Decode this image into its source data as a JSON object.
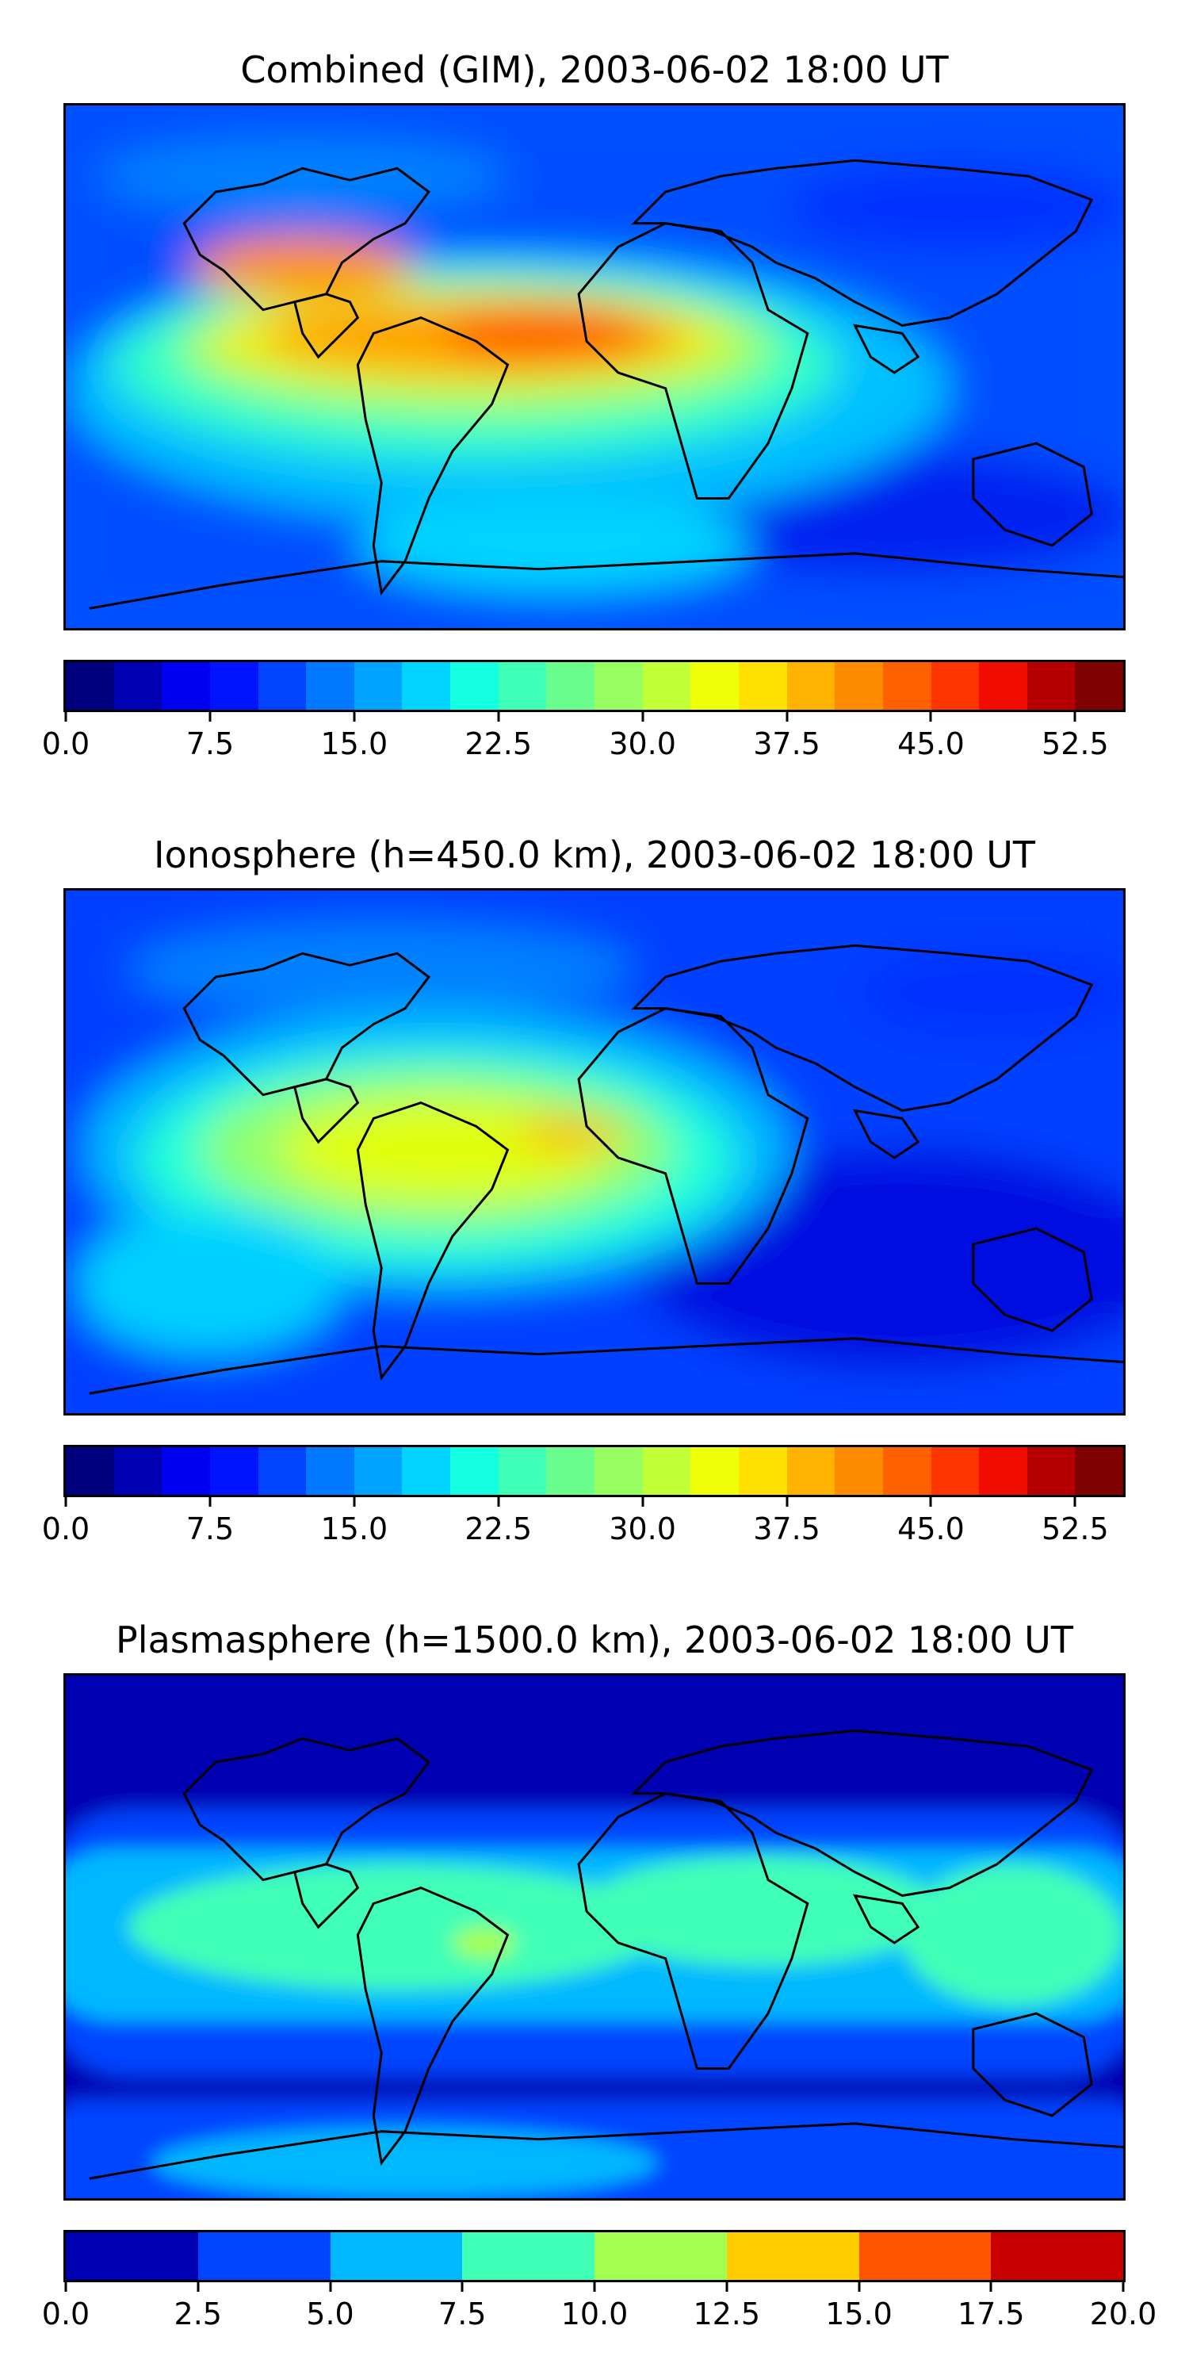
{
  "panels": [
    {
      "title": "Combined (GIM), 2003-06-02 18:00 UT",
      "colorbar": {
        "vmin": 0.0,
        "vmax": 55.0,
        "ticks": [
          "0.0",
          "7.5",
          "15.0",
          "22.5",
          "30.0",
          "37.5",
          "45.0",
          "52.5"
        ],
        "tick_values": [
          0.0,
          7.5,
          15.0,
          22.5,
          30.0,
          37.5,
          45.0,
          52.5
        ],
        "colors": [
          "#00007f",
          "#0000b2",
          "#0000f0",
          "#0014ff",
          "#0044ff",
          "#0078ff",
          "#00a4ff",
          "#00d4ff",
          "#14ffe2",
          "#3fffb7",
          "#6aff8c",
          "#97ff60",
          "#c1ff36",
          "#eeff08",
          "#ffe000",
          "#ffb300",
          "#ff8b00",
          "#ff6000",
          "#ff3500",
          "#f00d00",
          "#b60000",
          "#7f0000"
        ]
      }
    },
    {
      "title": "Ionosphere  (h=450.0 km), 2003-06-02 18:00 UT",
      "colorbar": {
        "vmin": 0.0,
        "vmax": 55.0,
        "ticks": [
          "0.0",
          "7.5",
          "15.0",
          "22.5",
          "30.0",
          "37.5",
          "45.0",
          "52.5"
        ],
        "tick_values": [
          0.0,
          7.5,
          15.0,
          22.5,
          30.0,
          37.5,
          45.0,
          52.5
        ],
        "colors": [
          "#00007f",
          "#0000b2",
          "#0000f0",
          "#0014ff",
          "#0044ff",
          "#0078ff",
          "#00a4ff",
          "#00d4ff",
          "#14ffe2",
          "#3fffb7",
          "#6aff8c",
          "#97ff60",
          "#c1ff36",
          "#eeff08",
          "#ffe000",
          "#ffb300",
          "#ff8b00",
          "#ff6000",
          "#ff3500",
          "#f00d00",
          "#b60000",
          "#7f0000"
        ]
      }
    },
    {
      "title": "Plasmasphere (h=1500.0 km), 2003-06-02 18:00 UT",
      "colorbar": {
        "vmin": 0.0,
        "vmax": 20.0,
        "ticks": [
          "0.0",
          "2.5",
          "5.0",
          "7.5",
          "10.0",
          "12.5",
          "15.0",
          "17.5",
          "20.0"
        ],
        "tick_values": [
          0.0,
          2.5,
          5.0,
          7.5,
          10.0,
          12.5,
          15.0,
          17.5,
          20.0
        ],
        "colors": [
          "#0000b2",
          "#0044ff",
          "#00b8ff",
          "#3fffb7",
          "#a4ff53",
          "#ffcc00",
          "#ff5400",
          "#c80000"
        ]
      }
    }
  ]
}
